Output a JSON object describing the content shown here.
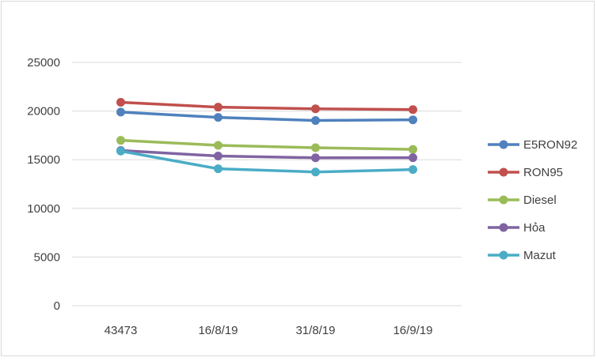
{
  "chart_data": {
    "type": "line",
    "title": "",
    "xlabel": "",
    "ylabel": "",
    "categories": [
      "43473",
      "16/8/19",
      "31/8/19",
      "16/9/19"
    ],
    "ylim": [
      0,
      25000
    ],
    "yticks": [
      0,
      5000,
      10000,
      15000,
      20000,
      25000
    ],
    "grid": true,
    "legend_position": "right",
    "series": [
      {
        "name": "E5RON92",
        "color": "#4f81bd",
        "values": [
          19900,
          19350,
          19030,
          19100
        ]
      },
      {
        "name": "RON95",
        "color": "#c0504d",
        "values": [
          20900,
          20400,
          20230,
          20150
        ]
      },
      {
        "name": "Diesel",
        "color": "#9bbb59",
        "values": [
          16990,
          16480,
          16230,
          16060
        ]
      },
      {
        "name": "Hỏa",
        "color": "#8064a2",
        "values": [
          15950,
          15380,
          15200,
          15210
        ]
      },
      {
        "name": "Mazut",
        "color": "#4bacc6",
        "values": [
          15890,
          14070,
          13740,
          13990
        ]
      }
    ]
  }
}
